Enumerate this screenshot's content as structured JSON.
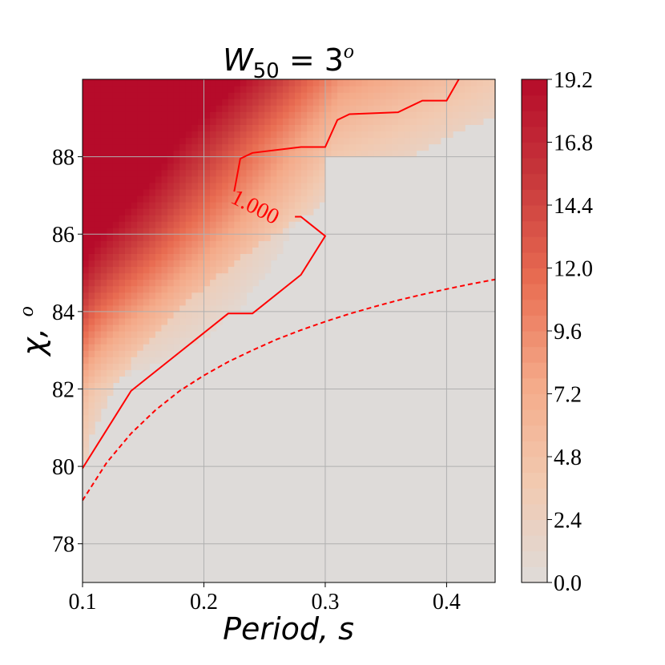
{
  "chart_data": {
    "type": "heatmap",
    "title": {
      "main": "W",
      "subscript": "50",
      "equals": " = 3",
      "superscript": "o"
    },
    "xlabel": "Period,  s",
    "ylabel": {
      "main": "χ,",
      "superscript": "o"
    },
    "xlim": [
      0.1,
      0.44
    ],
    "ylim": [
      77,
      90
    ],
    "xticks": [
      0.1,
      0.2,
      0.3,
      0.4
    ],
    "xtick_labels": [
      "0.1",
      "0.2",
      "0.3",
      "0.4"
    ],
    "yticks": [
      78,
      80,
      82,
      84,
      86,
      88
    ],
    "ytick_labels": [
      "78",
      "80",
      "82",
      "84",
      "86",
      "88"
    ],
    "grid": true,
    "colorbar": {
      "min": 0.0,
      "max": 19.2,
      "levels": 32,
      "ticks": [
        0.0,
        2.4,
        4.8,
        7.2,
        9.6,
        12.0,
        14.4,
        16.8,
        19.2
      ],
      "tick_labels": [
        "0.0",
        "2.4",
        "4.8",
        "7.2",
        "9.6",
        "12.0",
        "14.4",
        "16.8",
        "19.2"
      ],
      "colormap": [
        "#dedbd9",
        "#f2c9b0",
        "#f4a988",
        "#e96d52",
        "#c8393c",
        "#b60b2a"
      ]
    },
    "grid_x": [
      0.1,
      0.12,
      0.14,
      0.16,
      0.18,
      0.2,
      0.22,
      0.24,
      0.26,
      0.28,
      0.3,
      0.32,
      0.34,
      0.36,
      0.38,
      0.4,
      0.42,
      0.44
    ],
    "grid_y": [
      77,
      78,
      79,
      80,
      81,
      82,
      83,
      84,
      85,
      86,
      87,
      88,
      89,
      90
    ],
    "contour_level": {
      "value": 1.0,
      "label": "1.000",
      "label_position": [
        0.225,
        86.75
      ],
      "color": "#ff0000",
      "path": [
        [
          0.1,
          79.95
        ],
        [
          0.14,
          81.95
        ],
        [
          0.18,
          82.95
        ],
        [
          0.22,
          83.95
        ],
        [
          0.24,
          83.95
        ],
        [
          0.28,
          84.95
        ],
        [
          0.3,
          85.95
        ],
        [
          0.28,
          86.45
        ],
        [
          0.275,
          86.45
        ]
      ],
      "path_upper": [
        [
          0.225,
          87.1
        ],
        [
          0.23,
          87.95
        ],
        [
          0.24,
          88.1
        ],
        [
          0.28,
          88.25
        ],
        [
          0.3,
          88.25
        ],
        [
          0.31,
          88.95
        ],
        [
          0.32,
          89.1
        ],
        [
          0.36,
          89.15
        ],
        [
          0.38,
          89.45
        ],
        [
          0.4,
          89.45
        ],
        [
          0.41,
          90.0
        ]
      ]
    },
    "boundary_curve": {
      "style": "dashed",
      "color": "#ff0000",
      "function": "y = 79.1 + 0.58*sqrt(...)",
      "points": [
        [
          0.1,
          79.12
        ],
        [
          0.12,
          80.1
        ],
        [
          0.14,
          80.85
        ],
        [
          0.16,
          81.45
        ],
        [
          0.18,
          81.95
        ],
        [
          0.2,
          82.35
        ],
        [
          0.22,
          82.7
        ],
        [
          0.24,
          83.0
        ],
        [
          0.26,
          83.28
        ],
        [
          0.28,
          83.52
        ],
        [
          0.3,
          83.74
        ],
        [
          0.32,
          83.94
        ],
        [
          0.34,
          84.12
        ],
        [
          0.36,
          84.29
        ],
        [
          0.38,
          84.44
        ],
        [
          0.4,
          84.58
        ],
        [
          0.42,
          84.71
        ],
        [
          0.44,
          84.83
        ]
      ]
    }
  }
}
